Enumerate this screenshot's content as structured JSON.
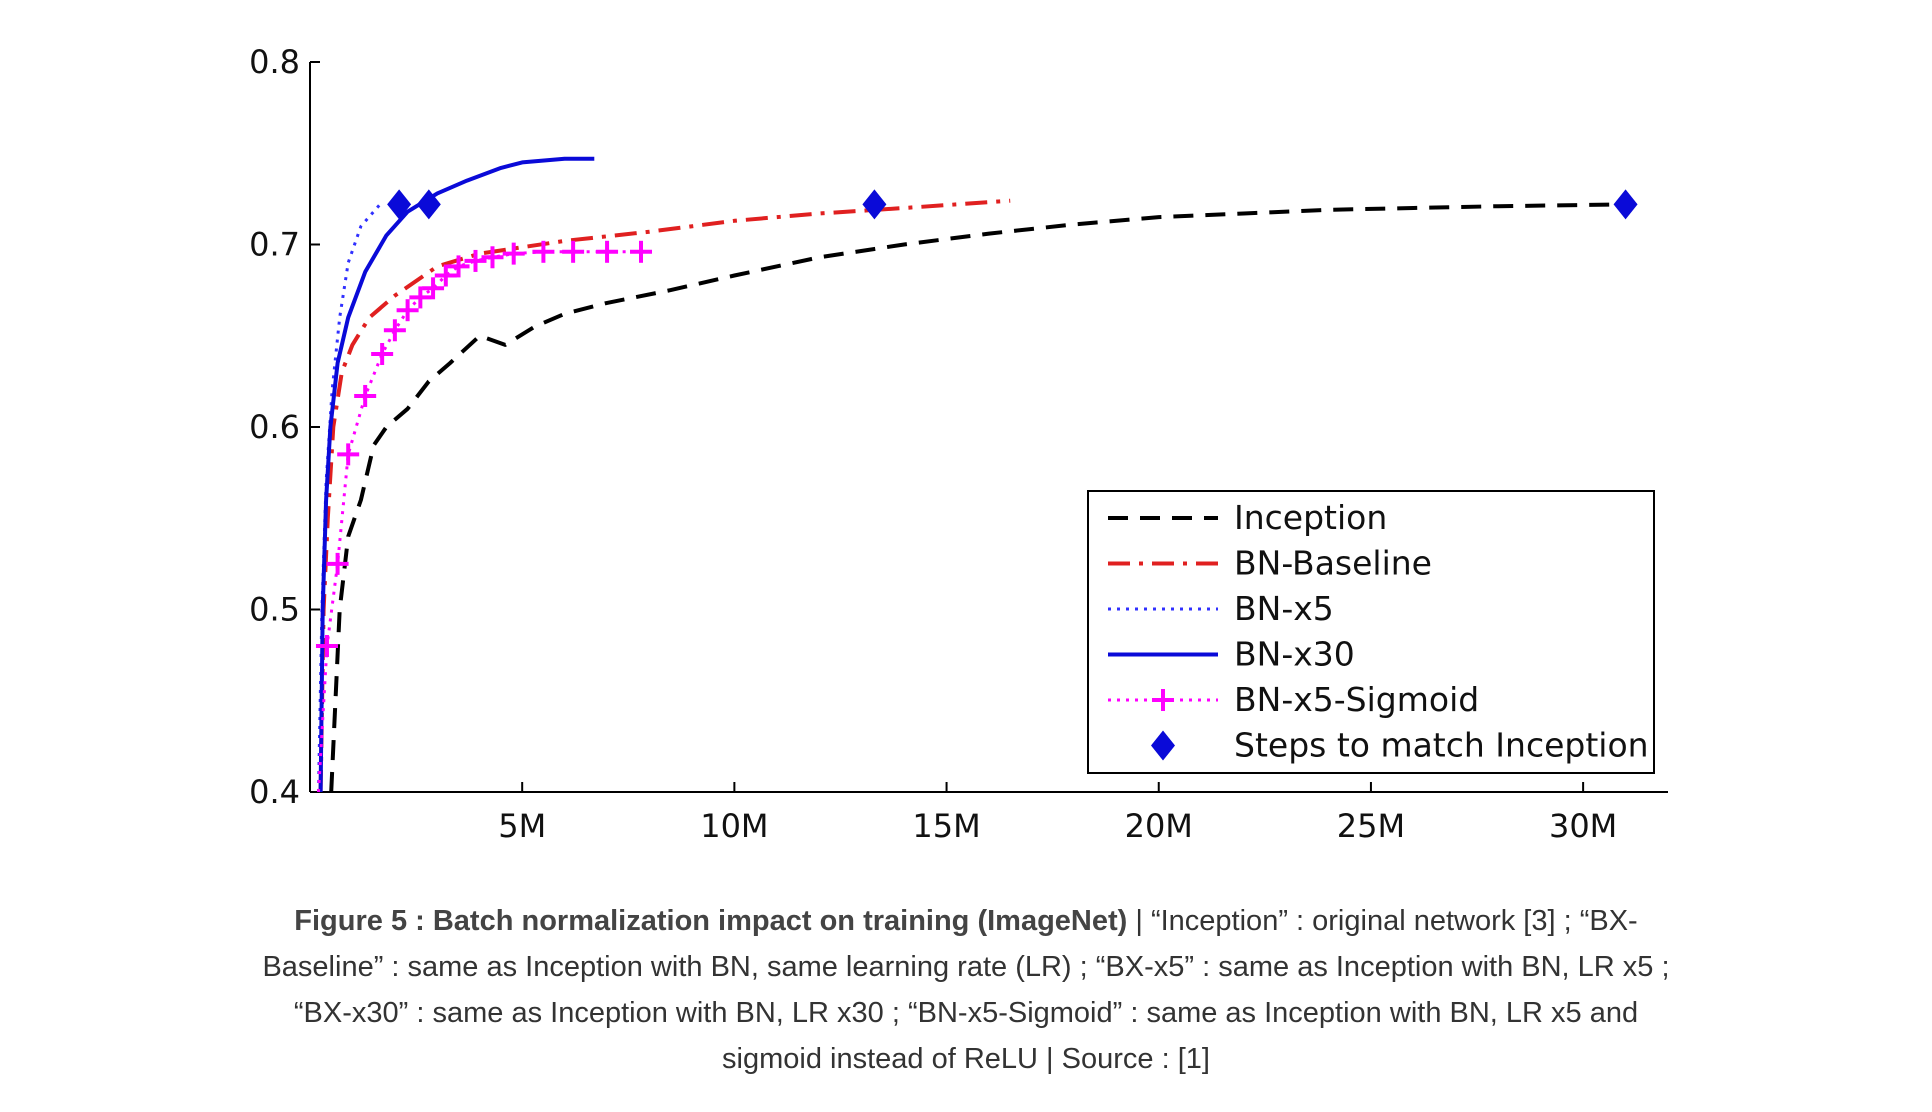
{
  "chart_data": {
    "type": "line",
    "xlim": [
      0,
      32000000
    ],
    "ylim": [
      0.4,
      0.8
    ],
    "x_ticks": [
      {
        "value": 5000000,
        "label": "5M"
      },
      {
        "value": 10000000,
        "label": "10M"
      },
      {
        "value": 15000000,
        "label": "15M"
      },
      {
        "value": 20000000,
        "label": "20M"
      },
      {
        "value": 25000000,
        "label": "25M"
      },
      {
        "value": 30000000,
        "label": "30M"
      }
    ],
    "y_ticks": [
      {
        "value": 0.4,
        "label": "0.4"
      },
      {
        "value": 0.5,
        "label": "0.5"
      },
      {
        "value": 0.6,
        "label": "0.6"
      },
      {
        "value": 0.7,
        "label": "0.7"
      },
      {
        "value": 0.8,
        "label": "0.8"
      }
    ],
    "legend_position": "bottom-right",
    "series": [
      {
        "name": "Inception",
        "color": "#000000",
        "style": "dashed",
        "points": [
          [
            500000,
            0.4
          ],
          [
            700000,
            0.5
          ],
          [
            900000,
            0.54
          ],
          [
            1200000,
            0.56
          ],
          [
            1500000,
            0.59
          ],
          [
            1800000,
            0.6
          ],
          [
            2300000,
            0.61
          ],
          [
            2800000,
            0.625
          ],
          [
            3300000,
            0.635
          ],
          [
            4000000,
            0.65
          ],
          [
            4600000,
            0.645
          ],
          [
            5300000,
            0.655
          ],
          [
            6000000,
            0.662
          ],
          [
            7000000,
            0.668
          ],
          [
            8500000,
            0.675
          ],
          [
            10000000,
            0.683
          ],
          [
            12000000,
            0.693
          ],
          [
            14000000,
            0.7
          ],
          [
            16000000,
            0.706
          ],
          [
            18000000,
            0.711
          ],
          [
            20000000,
            0.715
          ],
          [
            22000000,
            0.717
          ],
          [
            24000000,
            0.719
          ],
          [
            26000000,
            0.72
          ],
          [
            28000000,
            0.721
          ],
          [
            31000000,
            0.722
          ]
        ]
      },
      {
        "name": "BN-Baseline",
        "color": "#e02020",
        "style": "dashdot",
        "points": [
          [
            250000,
            0.4
          ],
          [
            320000,
            0.5
          ],
          [
            420000,
            0.55
          ],
          [
            550000,
            0.6
          ],
          [
            750000,
            0.63
          ],
          [
            1000000,
            0.645
          ],
          [
            1400000,
            0.66
          ],
          [
            2000000,
            0.672
          ],
          [
            3000000,
            0.688
          ],
          [
            4000000,
            0.695
          ],
          [
            6000000,
            0.702
          ],
          [
            8000000,
            0.707
          ],
          [
            10000000,
            0.713
          ],
          [
            12000000,
            0.717
          ],
          [
            14000000,
            0.72
          ],
          [
            16500000,
            0.724
          ]
        ]
      },
      {
        "name": "BN-x5",
        "color": "#3030ff",
        "style": "dotted",
        "points": [
          [
            200000,
            0.4
          ],
          [
            280000,
            0.5
          ],
          [
            380000,
            0.57
          ],
          [
            520000,
            0.62
          ],
          [
            700000,
            0.66
          ],
          [
            900000,
            0.69
          ],
          [
            1200000,
            0.71
          ],
          [
            1650000,
            0.722
          ]
        ]
      },
      {
        "name": "BN-x30",
        "color": "#0a0ad8",
        "style": "solid",
        "points": [
          [
            250000,
            0.4
          ],
          [
            300000,
            0.5
          ],
          [
            380000,
            0.56
          ],
          [
            480000,
            0.6
          ],
          [
            650000,
            0.635
          ],
          [
            900000,
            0.66
          ],
          [
            1300000,
            0.685
          ],
          [
            1800000,
            0.705
          ],
          [
            2300000,
            0.718
          ],
          [
            3000000,
            0.728
          ],
          [
            3700000,
            0.735
          ],
          [
            4500000,
            0.742
          ],
          [
            5000000,
            0.745
          ],
          [
            6000000,
            0.747
          ],
          [
            6700000,
            0.747
          ]
        ]
      },
      {
        "name": "BN-x5-Sigmoid",
        "color": "#ff00ff",
        "style": "dotted-plus",
        "points": [
          [
            200000,
            0.4
          ],
          [
            400000,
            0.48
          ],
          [
            650000,
            0.525
          ],
          [
            900000,
            0.585
          ],
          [
            1300000,
            0.617
          ],
          [
            1700000,
            0.64
          ],
          [
            2000000,
            0.653
          ],
          [
            2300000,
            0.664
          ],
          [
            2600000,
            0.671
          ],
          [
            2900000,
            0.676
          ],
          [
            3200000,
            0.683
          ],
          [
            3500000,
            0.688
          ],
          [
            3900000,
            0.691
          ],
          [
            4300000,
            0.693
          ],
          [
            4800000,
            0.695
          ],
          [
            5500000,
            0.696
          ],
          [
            6200000,
            0.696
          ],
          [
            7000000,
            0.696
          ],
          [
            7800000,
            0.696
          ]
        ]
      }
    ],
    "markers": {
      "name": "Steps to match Inception",
      "color": "#0a0ad8",
      "shape": "diamond",
      "points": [
        [
          2100000,
          0.722
        ],
        [
          2800000,
          0.722
        ],
        [
          13300000,
          0.722
        ],
        [
          31000000,
          0.722
        ]
      ]
    }
  },
  "caption": {
    "bold": "Figure 5 : Batch normalization impact on training (ImageNet)",
    "lines": [
      " | “Inception” : original network [3] ; “BX-",
      "Baseline” : same as Inception with BN, same learning rate (LR) ; “BX-x5” : same as Inception with BN, LR x5 ;",
      "“BX-x30” : same as Inception with BN, LR x30 ; “BN-x5-Sigmoid” : same as Inception with BN, LR x5 and",
      "sigmoid instead of ReLU | Source : [1]"
    ]
  }
}
